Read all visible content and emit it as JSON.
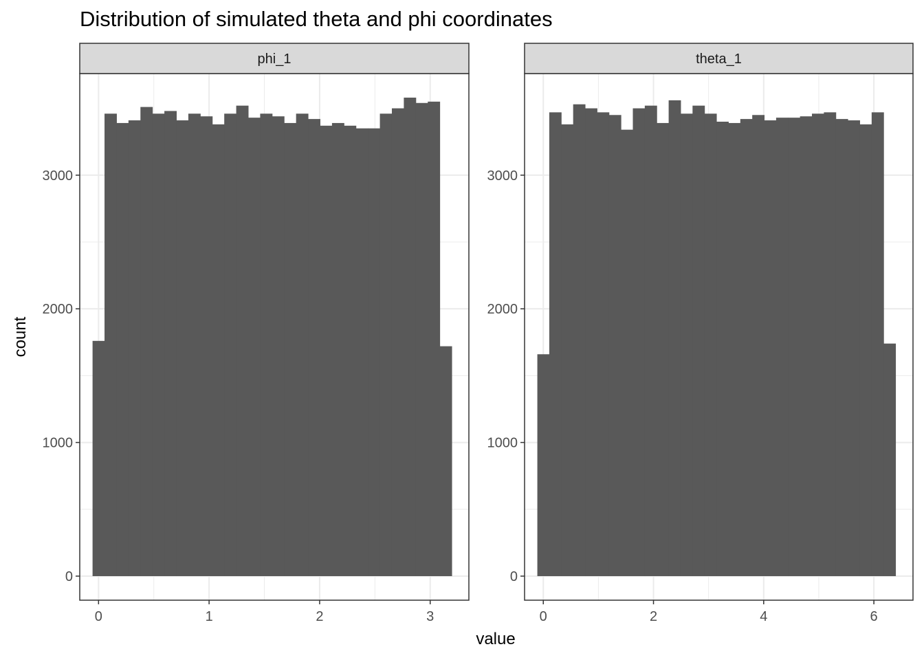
{
  "title": "Distribution of simulated theta and phi coordinates",
  "xlabel": "value",
  "ylabel": "count",
  "colors": {
    "bar_fill": "#595959",
    "strip_fill": "#d9d9d9",
    "grid": "#ebebeb",
    "border": "#333333",
    "axis_text": "#4d4d4d"
  },
  "chart_data": [
    {
      "type": "bar",
      "facet": "phi_1",
      "xlabel": "value",
      "ylabel": "count",
      "bin_width": 0.1083,
      "bin_start": -0.0542,
      "counts": [
        1760,
        3460,
        3390,
        3410,
        3510,
        3460,
        3480,
        3410,
        3460,
        3440,
        3380,
        3460,
        3520,
        3430,
        3460,
        3440,
        3390,
        3460,
        3420,
        3370,
        3390,
        3370,
        3350,
        3350,
        3460,
        3500,
        3580,
        3540,
        3550,
        1720
      ],
      "xlim": [
        -0.17,
        3.35
      ],
      "ylim": [
        -180,
        3760
      ],
      "x_ticks": [
        0,
        1,
        2,
        3
      ],
      "y_ticks": [
        0,
        1000,
        2000,
        3000
      ]
    },
    {
      "type": "bar",
      "facet": "theta_1",
      "xlabel": "value",
      "ylabel": "count",
      "bin_width": 0.2167,
      "bin_start": -0.1083,
      "counts": [
        1660,
        3470,
        3380,
        3530,
        3500,
        3470,
        3450,
        3340,
        3500,
        3520,
        3390,
        3560,
        3460,
        3520,
        3460,
        3400,
        3390,
        3420,
        3450,
        3410,
        3430,
        3430,
        3440,
        3460,
        3470,
        3420,
        3410,
        3380,
        3470,
        1740
      ],
      "xlim": [
        -0.34,
        6.71
      ],
      "ylim": [
        -180,
        3760
      ],
      "x_ticks": [
        0,
        2,
        4,
        6
      ],
      "y_ticks": [
        0,
        1000,
        2000,
        3000
      ]
    }
  ]
}
